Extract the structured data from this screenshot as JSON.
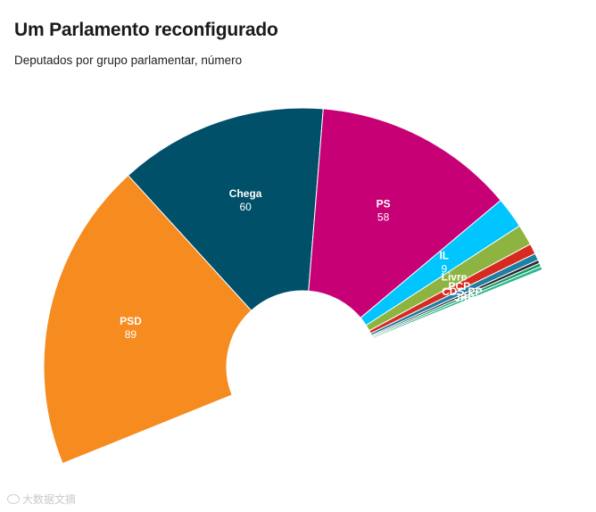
{
  "header": {
    "title": "Um Parlamento reconfigurado",
    "subtitle": "Deputados por grupo parlamentar, número"
  },
  "watermark": {
    "text": "大数据文摘"
  },
  "chart_data": {
    "type": "pie",
    "variant": "semicircle-donut",
    "title": "Um Parlamento reconfigurado",
    "subtitle": "Deputados por grupo parlamentar, número",
    "total": 230,
    "series": [
      {
        "name": "PSD",
        "value": 89,
        "color": "#f68b1f",
        "label": "PSD",
        "value_label": "89"
      },
      {
        "name": "Chega",
        "value": 60,
        "color": "#005069",
        "label": "Chega",
        "value_label": "60"
      },
      {
        "name": "PS",
        "value": 58,
        "color": "#c80076",
        "label": "PS",
        "value_label": "58"
      },
      {
        "name": "IL",
        "value": 9,
        "color": "#00c5ff",
        "label": "IL",
        "value_label": "9"
      },
      {
        "name": "Livre",
        "value": 6,
        "color": "#8db440",
        "label": "Livre",
        "value_label": ""
      },
      {
        "name": "PCP",
        "value": 3,
        "color": "#d62a20",
        "label": "PCP",
        "value_label": ""
      },
      {
        "name": "CDS-PP",
        "value": 2,
        "color": "#1d7fa3",
        "label": "CDS-PP",
        "value_label": ""
      },
      {
        "name": "BE",
        "value": 1,
        "color": "#2b2b2b",
        "label": "",
        "value_label": ""
      },
      {
        "name": "JPP",
        "value": 1,
        "color": "#179c6a",
        "label": "JPP",
        "value_label": ""
      },
      {
        "name": "PAN",
        "value": 1,
        "color": "#2db58f",
        "label": "1",
        "value_label": ""
      }
    ],
    "legend": "none",
    "grid": false
  }
}
